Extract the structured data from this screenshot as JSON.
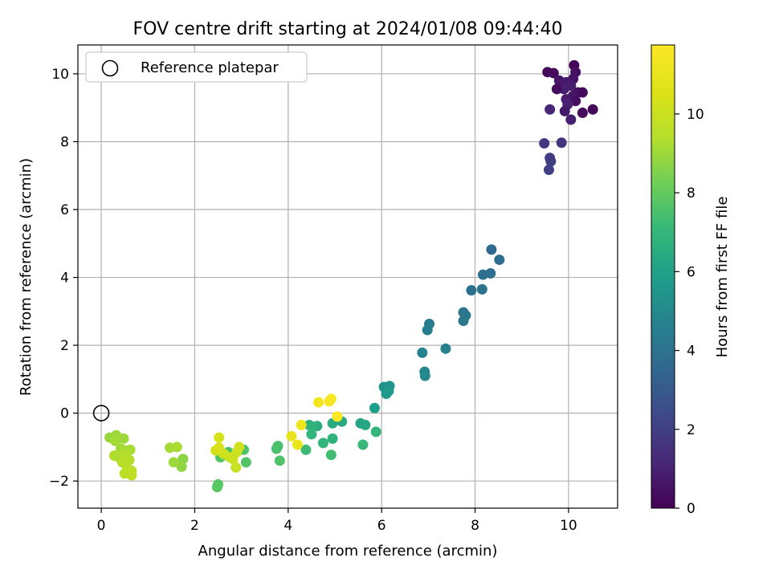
{
  "chart_data": {
    "type": "scatter",
    "title": "FOV centre drift starting at 2024/01/08 09:44:40",
    "xlabel": "Angular distance from reference (arcmin)",
    "ylabel": "Rotation from reference (arcmin)",
    "xlim": [
      -0.5,
      11.05
    ],
    "ylim": [
      -2.8,
      10.85
    ],
    "xticks": [
      0,
      2,
      4,
      6,
      8,
      10
    ],
    "yticks": [
      -2,
      0,
      2,
      4,
      6,
      8,
      10
    ],
    "grid": true,
    "legend": {
      "placement": "top-left",
      "entries": [
        "Reference platepar"
      ]
    },
    "reference_point": {
      "x": 0,
      "y": 0
    },
    "colorbar": {
      "label": "Hours from first FF file",
      "cmap": "viridis",
      "range": [
        0,
        11.75
      ],
      "ticks": [
        0,
        2,
        4,
        6,
        8,
        10
      ]
    },
    "points": [
      {
        "x": 10.12,
        "y": 10.25,
        "c": 0.1
      },
      {
        "x": 9.55,
        "y": 10.05,
        "c": 0.2
      },
      {
        "x": 9.68,
        "y": 10.02,
        "c": 0.3
      },
      {
        "x": 10.15,
        "y": 10.05,
        "c": 0.4
      },
      {
        "x": 10.1,
        "y": 9.85,
        "c": 0.5
      },
      {
        "x": 9.8,
        "y": 9.8,
        "c": 0.6
      },
      {
        "x": 9.95,
        "y": 9.75,
        "c": 0.7
      },
      {
        "x": 10.05,
        "y": 9.65,
        "c": 0.8
      },
      {
        "x": 9.9,
        "y": 9.55,
        "c": 0.9
      },
      {
        "x": 9.75,
        "y": 9.55,
        "c": 0.3
      },
      {
        "x": 10.2,
        "y": 9.45,
        "c": 0.5
      },
      {
        "x": 10.3,
        "y": 9.45,
        "c": 0.2
      },
      {
        "x": 10.1,
        "y": 9.35,
        "c": 0.6
      },
      {
        "x": 9.95,
        "y": 9.25,
        "c": 0.8
      },
      {
        "x": 10.15,
        "y": 9.2,
        "c": 0.4
      },
      {
        "x": 9.98,
        "y": 9.1,
        "c": 1.0
      },
      {
        "x": 9.6,
        "y": 8.95,
        "c": 1.1
      },
      {
        "x": 9.92,
        "y": 8.9,
        "c": 0.7
      },
      {
        "x": 10.3,
        "y": 8.85,
        "c": 0.3
      },
      {
        "x": 10.52,
        "y": 8.95,
        "c": 0.2
      },
      {
        "x": 10.05,
        "y": 8.65,
        "c": 0.9
      },
      {
        "x": 9.48,
        "y": 7.95,
        "c": 1.7
      },
      {
        "x": 9.85,
        "y": 7.97,
        "c": 1.6
      },
      {
        "x": 9.6,
        "y": 7.52,
        "c": 1.8
      },
      {
        "x": 9.62,
        "y": 7.42,
        "c": 1.9
      },
      {
        "x": 9.58,
        "y": 7.17,
        "c": 2.0
      },
      {
        "x": 8.35,
        "y": 4.82,
        "c": 3.6
      },
      {
        "x": 8.52,
        "y": 4.52,
        "c": 3.7
      },
      {
        "x": 8.17,
        "y": 4.08,
        "c": 3.8
      },
      {
        "x": 8.33,
        "y": 4.12,
        "c": 3.8
      },
      {
        "x": 7.92,
        "y": 3.62,
        "c": 3.9
      },
      {
        "x": 8.15,
        "y": 3.65,
        "c": 4.0
      },
      {
        "x": 7.75,
        "y": 2.97,
        "c": 4.1
      },
      {
        "x": 7.8,
        "y": 2.88,
        "c": 4.2
      },
      {
        "x": 7.75,
        "y": 2.72,
        "c": 4.2
      },
      {
        "x": 7.02,
        "y": 2.63,
        "c": 4.4
      },
      {
        "x": 6.98,
        "y": 2.45,
        "c": 4.5
      },
      {
        "x": 7.37,
        "y": 1.9,
        "c": 4.6
      },
      {
        "x": 6.87,
        "y": 1.78,
        "c": 4.7
      },
      {
        "x": 6.92,
        "y": 1.22,
        "c": 4.9
      },
      {
        "x": 6.93,
        "y": 1.1,
        "c": 5.0
      },
      {
        "x": 6.05,
        "y": 0.77,
        "c": 5.4
      },
      {
        "x": 6.17,
        "y": 0.8,
        "c": 5.5
      },
      {
        "x": 6.15,
        "y": 0.65,
        "c": 5.6
      },
      {
        "x": 6.1,
        "y": 0.57,
        "c": 5.7
      },
      {
        "x": 5.85,
        "y": 0.15,
        "c": 5.9
      },
      {
        "x": 5.55,
        "y": -0.3,
        "c": 6.2
      },
      {
        "x": 5.65,
        "y": -0.35,
        "c": 6.3
      },
      {
        "x": 5.15,
        "y": -0.25,
        "c": 6.4
      },
      {
        "x": 4.95,
        "y": -0.3,
        "c": 6.5
      },
      {
        "x": 4.62,
        "y": -0.38,
        "c": 6.6
      },
      {
        "x": 4.45,
        "y": -0.35,
        "c": 6.7
      },
      {
        "x": 4.52,
        "y": -0.4,
        "c": 6.8
      },
      {
        "x": 4.5,
        "y": -0.62,
        "c": 6.9
      },
      {
        "x": 4.95,
        "y": -0.75,
        "c": 6.8
      },
      {
        "x": 4.75,
        "y": -0.88,
        "c": 6.9
      },
      {
        "x": 5.88,
        "y": -0.55,
        "c": 7.0
      },
      {
        "x": 5.6,
        "y": -0.93,
        "c": 7.1
      },
      {
        "x": 4.38,
        "y": -1.08,
        "c": 7.2
      },
      {
        "x": 4.92,
        "y": -1.23,
        "c": 7.3
      },
      {
        "x": 3.78,
        "y": -0.97,
        "c": 7.4
      },
      {
        "x": 3.75,
        "y": -1.05,
        "c": 7.5
      },
      {
        "x": 3.82,
        "y": -1.4,
        "c": 7.6
      },
      {
        "x": 2.72,
        "y": -1.15,
        "c": 7.5
      },
      {
        "x": 3.05,
        "y": -1.08,
        "c": 7.6
      },
      {
        "x": 3.1,
        "y": -1.45,
        "c": 7.7
      },
      {
        "x": 2.55,
        "y": -1.3,
        "c": 7.7
      },
      {
        "x": 2.5,
        "y": -2.1,
        "c": 7.8
      },
      {
        "x": 2.48,
        "y": -2.18,
        "c": 7.8
      },
      {
        "x": 1.75,
        "y": -1.35,
        "c": 8.7
      },
      {
        "x": 1.72,
        "y": -1.58,
        "c": 8.8
      },
      {
        "x": 1.55,
        "y": -1.45,
        "c": 9.0
      },
      {
        "x": 1.47,
        "y": -1.02,
        "c": 9.1
      },
      {
        "x": 1.62,
        "y": -1.0,
        "c": 9.2
      },
      {
        "x": 0.18,
        "y": -0.72,
        "c": 8.9
      },
      {
        "x": 0.32,
        "y": -0.65,
        "c": 9.0
      },
      {
        "x": 0.48,
        "y": -0.75,
        "c": 9.0
      },
      {
        "x": 0.3,
        "y": -0.82,
        "c": 9.1
      },
      {
        "x": 0.42,
        "y": -1.05,
        "c": 9.1
      },
      {
        "x": 0.55,
        "y": -1.1,
        "c": 9.2
      },
      {
        "x": 0.62,
        "y": -1.08,
        "c": 9.2
      },
      {
        "x": 0.28,
        "y": -1.25,
        "c": 9.3
      },
      {
        "x": 0.38,
        "y": -1.3,
        "c": 9.3
      },
      {
        "x": 0.5,
        "y": -1.22,
        "c": 9.4
      },
      {
        "x": 0.6,
        "y": -1.38,
        "c": 9.4
      },
      {
        "x": 0.45,
        "y": -1.45,
        "c": 9.5
      },
      {
        "x": 0.55,
        "y": -1.6,
        "c": 9.5
      },
      {
        "x": 0.65,
        "y": -1.7,
        "c": 9.6
      },
      {
        "x": 0.5,
        "y": -1.78,
        "c": 9.6
      },
      {
        "x": 0.65,
        "y": -1.83,
        "c": 9.7
      },
      {
        "x": 2.88,
        "y": -1.6,
        "c": 9.9
      },
      {
        "x": 2.75,
        "y": -1.3,
        "c": 10.0
      },
      {
        "x": 2.9,
        "y": -1.15,
        "c": 10.1
      },
      {
        "x": 2.95,
        "y": -1.0,
        "c": 10.2
      },
      {
        "x": 2.62,
        "y": -1.2,
        "c": 10.2
      },
      {
        "x": 2.45,
        "y": -1.1,
        "c": 10.3
      },
      {
        "x": 2.52,
        "y": -1.02,
        "c": 10.4
      },
      {
        "x": 2.52,
        "y": -0.72,
        "c": 10.4
      },
      {
        "x": 2.82,
        "y": -1.35,
        "c": 10.1
      },
      {
        "x": 4.07,
        "y": -0.68,
        "c": 11.0
      },
      {
        "x": 4.2,
        "y": -0.93,
        "c": 11.1
      },
      {
        "x": 4.28,
        "y": -0.35,
        "c": 11.2
      },
      {
        "x": 4.65,
        "y": 0.32,
        "c": 11.4
      },
      {
        "x": 4.88,
        "y": 0.35,
        "c": 11.5
      },
      {
        "x": 4.92,
        "y": 0.42,
        "c": 11.6
      },
      {
        "x": 5.05,
        "y": -0.1,
        "c": 11.7
      }
    ]
  }
}
